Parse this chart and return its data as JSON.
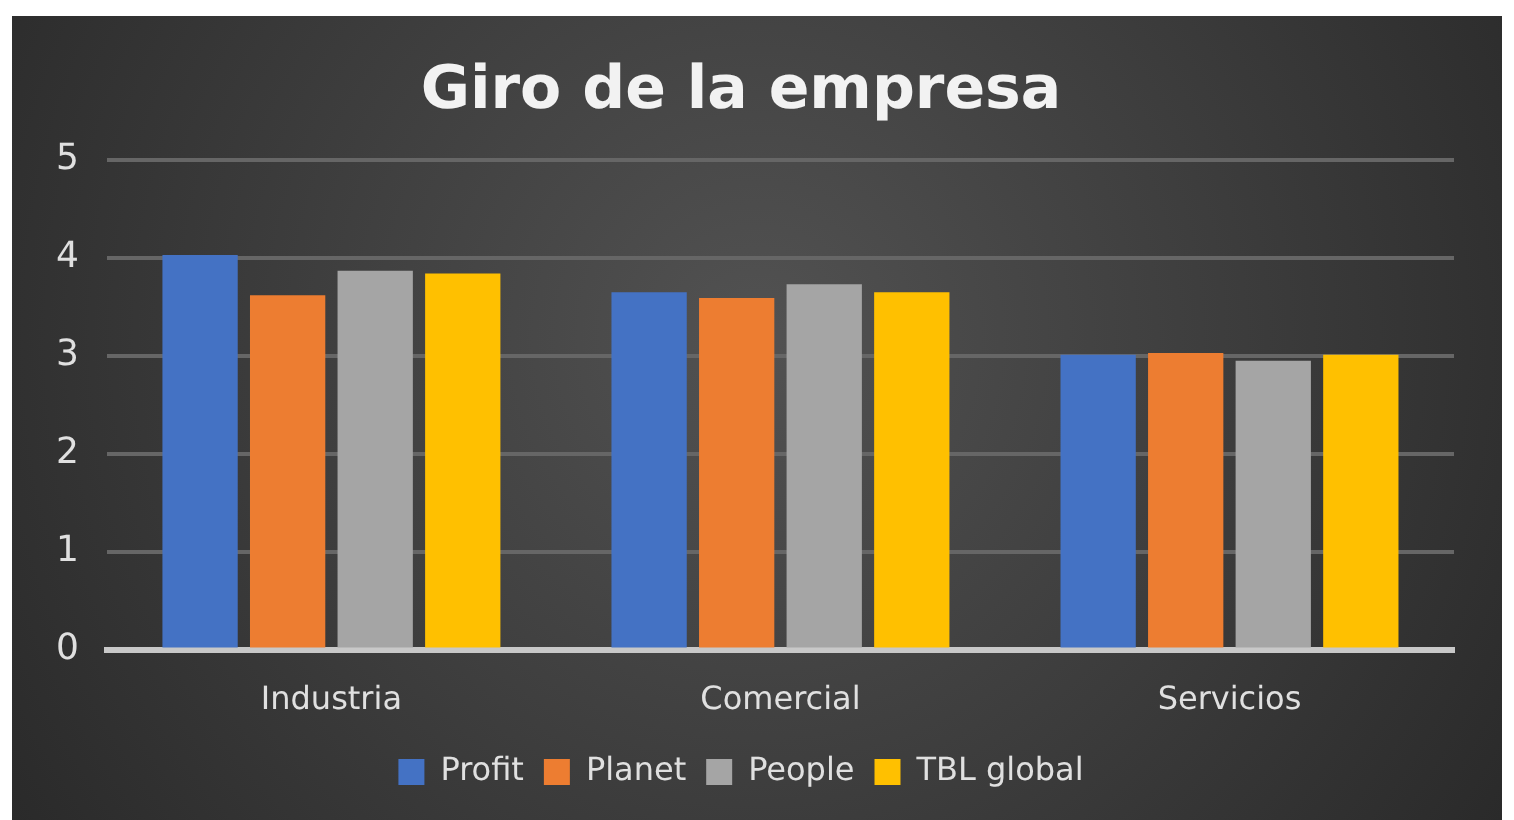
{
  "chart_data": {
    "type": "bar",
    "title": "Giro de la empresa",
    "categories": [
      "Industria",
      "Comercial",
      "Servicios"
    ],
    "series": [
      {
        "name": "Profit",
        "color": "#4472c4",
        "values": [
          4.03,
          3.65,
          3.01
        ]
      },
      {
        "name": "Planet",
        "color": "#ed7d31",
        "values": [
          3.62,
          3.59,
          3.03
        ]
      },
      {
        "name": "People",
        "color": "#a5a5a5",
        "values": [
          3.87,
          3.73,
          2.95
        ]
      },
      {
        "name": "TBL global",
        "color": "#ffc000",
        "values": [
          3.84,
          3.65,
          3.01
        ]
      }
    ],
    "ylim": [
      0,
      5
    ],
    "yticks": [
      0,
      1,
      2,
      3,
      4,
      5
    ],
    "grid": "y",
    "legend": "bottom"
  }
}
